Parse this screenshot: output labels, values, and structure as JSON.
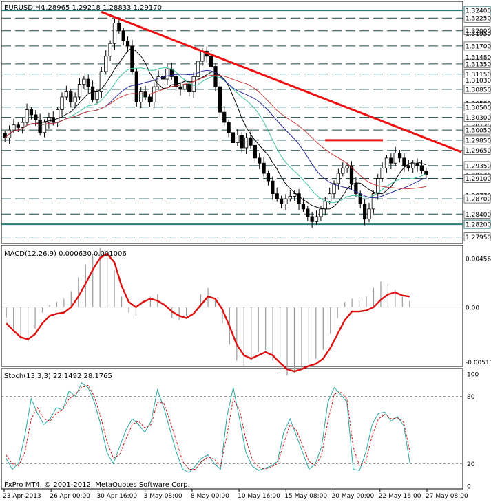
{
  "header": {
    "symbol": "EURUSD,H4",
    "ohlc": "1.28965 1.29218 1.28833 1.29170"
  },
  "footer": {
    "copyright": "FxPro MT4, © 2001-2012, MetaQuotes Software Corp."
  },
  "x_ticks": [
    "23 Apr 2013",
    "26 Apr 00:00",
    "30 Apr 16:00",
    "3 May 08:00",
    "8 May 00:00",
    "10 May 16:00",
    "15 May 08:00",
    "20 May 00:00",
    "22 May 16:00",
    "27 May 08:00"
  ],
  "chart_data": [
    {
      "type": "candlestick",
      "title": "EURUSD,H4",
      "ylim": [
        1.2785,
        1.3255
      ],
      "level_labels": [
        "1.32400",
        "1.32250",
        "1.32000",
        "1.31950",
        "1.31700",
        "1.31480",
        "1.31350",
        "1.31150",
        "1.31030",
        "1.30850",
        "1.30580",
        "1.30500",
        "1.30300",
        "1.30130",
        "1.30050",
        "1.29850",
        "1.29650",
        "1.29350",
        "1.29170",
        "1.29100",
        "1.28770",
        "1.28700",
        "1.28400",
        "1.28200",
        "1.27950"
      ],
      "horizontal_levels": [
        1.324,
        1.3225,
        1.32,
        1.317,
        1.3135,
        1.3115,
        1.3085,
        1.305,
        1.303,
        1.3005,
        1.2985,
        1.2965,
        1.2935,
        1.291,
        1.287,
        1.284,
        1.282,
        1.2795
      ],
      "key_levels": [
        1.324,
        1.282
      ],
      "closes": [
        1.299,
        1.3005,
        1.3015,
        1.301,
        1.302,
        1.3045,
        1.3035,
        1.3025,
        1.3,
        1.302,
        1.303,
        1.302,
        1.3045,
        1.307,
        1.308,
        1.306,
        1.307,
        1.3095,
        1.3105,
        1.309,
        1.3065,
        1.308,
        1.312,
        1.315,
        1.3175,
        1.3215,
        1.32,
        1.318,
        1.317,
        1.312,
        1.306,
        1.308,
        1.307,
        1.306,
        1.309,
        1.311,
        1.3105,
        1.3125,
        1.311,
        1.309,
        1.3085,
        1.3095,
        1.308,
        1.311,
        1.314,
        1.316,
        1.315,
        1.313,
        1.309,
        1.304,
        1.302,
        1.3,
        1.298,
        1.2995,
        1.297,
        1.299,
        1.2975,
        1.295,
        1.294,
        1.292,
        1.2905,
        1.288,
        1.287,
        1.286,
        1.287,
        1.2875,
        1.288,
        1.286,
        1.285,
        1.2835,
        1.2825,
        1.2835,
        1.285,
        1.2865,
        1.288,
        1.29,
        1.292,
        1.293,
        1.2935,
        1.29,
        1.288,
        1.286,
        1.283,
        1.285,
        1.288,
        1.291,
        1.293,
        1.295,
        1.294,
        1.296,
        1.295,
        1.2935,
        1.293,
        1.294,
        1.2935,
        1.2925,
        1.2917
      ],
      "trendline": {
        "from": [
          0,
          1.3237
        ],
        "to": [
          100,
          1.2962
        ]
      },
      "resistance_segment": {
        "from": [
          73,
          1.2985
        ],
        "to": [
          83,
          1.2985
        ]
      }
    },
    {
      "type": "line",
      "title": "MACD(12,26,9) 0.000630 0.001006",
      "ylim": [
        -0.00535,
        0.0052
      ],
      "tick_labels": [
        "0.004568",
        "0.00",
        "-0.00511"
      ],
      "signal": [
        -0.0015,
        -0.0022,
        -0.0028,
        -0.003,
        -0.0025,
        -0.0015,
        -0.0008,
        -0.0006,
        -0.0005,
        0.0,
        0.001,
        0.0022,
        0.0035,
        0.0046,
        0.005,
        0.0042,
        0.002,
        0.0005,
        0.0,
        0.0005,
        0.0008,
        0.0006,
        0.0002,
        -0.0004,
        -0.0008,
        -0.001,
        -0.0006,
        0.0002,
        0.001,
        0.0008,
        -0.0002,
        -0.0018,
        -0.0035,
        -0.0045,
        -0.0048,
        -0.0045,
        -0.0042,
        -0.0045,
        -0.0052,
        -0.0058,
        -0.006,
        -0.0058,
        -0.0055,
        -0.0053,
        -0.0048,
        -0.0038,
        -0.0025,
        -0.0012,
        -0.0004,
        -0.0004,
        -0.0003,
        0.0,
        0.0007,
        0.0012,
        0.0014,
        0.0011,
        0.001
      ],
      "histogram": [
        -0.001,
        -0.002,
        -0.003,
        -0.0032,
        -0.002,
        -0.0005,
        0.0002,
        0.0005,
        0.0008,
        0.0015,
        0.0028,
        0.004,
        0.005,
        0.0056,
        0.0052,
        0.0035,
        0.001,
        -0.0005,
        -0.0008,
        0.0,
        0.001,
        0.0012,
        0.0,
        -0.001,
        -0.0012,
        -0.0008,
        0.0,
        0.0012,
        0.0018,
        0.0008,
        -0.0015,
        -0.0035,
        -0.005,
        -0.0055,
        -0.005,
        -0.0042,
        -0.004,
        -0.005,
        -0.006,
        -0.0064,
        -0.0062,
        -0.0058,
        -0.0052,
        -0.0048,
        -0.004,
        -0.0025,
        -0.001,
        0.0005,
        0.0008,
        0.0006,
        0.001,
        0.0018,
        0.0024,
        0.0022,
        0.0016,
        0.001,
        0.0006
      ]
    },
    {
      "type": "line",
      "title": "Stoch(13,3,3) 22.1492 28.1765",
      "ylim": [
        0,
        100
      ],
      "tick_labels": [
        "100",
        "80",
        "20",
        "0"
      ],
      "main": [
        25,
        15,
        20,
        45,
        78,
        65,
        55,
        60,
        70,
        68,
        85,
        80,
        92,
        88,
        75,
        55,
        30,
        20,
        35,
        50,
        60,
        55,
        48,
        58,
        86,
        70,
        50,
        30,
        15,
        12,
        18,
        25,
        28,
        20,
        15,
        62,
        88,
        60,
        30,
        18,
        14,
        16,
        18,
        22,
        48,
        60,
        45,
        30,
        15,
        20,
        35,
        75,
        88,
        82,
        75,
        15,
        14,
        30,
        55,
        65,
        66,
        58,
        62,
        54,
        20
      ],
      "signal": [
        28,
        20,
        18,
        30,
        60,
        70,
        60,
        58,
        65,
        68,
        78,
        82,
        88,
        90,
        80,
        62,
        40,
        25,
        28,
        42,
        55,
        58,
        52,
        55,
        75,
        74,
        58,
        40,
        22,
        15,
        15,
        22,
        26,
        24,
        18,
        45,
        78,
        68,
        42,
        24,
        17,
        15,
        17,
        20,
        38,
        55,
        50,
        36,
        22,
        18,
        28,
        58,
        82,
        84,
        78,
        35,
        18,
        22,
        45,
        60,
        64,
        60,
        61,
        57,
        30
      ]
    }
  ]
}
